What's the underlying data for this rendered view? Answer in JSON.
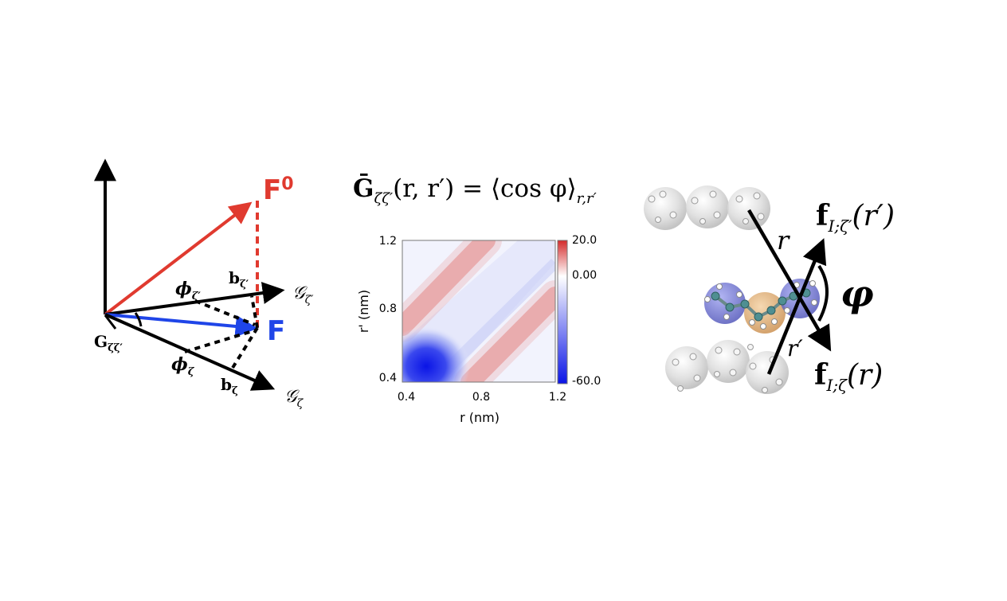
{
  "vector_panel": {
    "label_F0": "F",
    "label_F0_sup": "0",
    "label_F": "F",
    "label_G_prime_axis": "𝒢",
    "label_G_prime_sub": "ζ′",
    "label_G_axis": "𝒢",
    "label_G_sub": "ζ",
    "label_phi_prime": "ϕ",
    "label_phi_prime_sub": "ζ′",
    "label_phi": "ϕ",
    "label_phi_sub": "ζ",
    "label_b_prime": "b",
    "label_b_prime_sub": "ζ′",
    "label_b": "b",
    "label_b_sub": "ζ",
    "label_Gzz": "G",
    "label_Gzz_sub": "ζζ′",
    "colors": {
      "F0": "#e03a2f",
      "F": "#1f45e8",
      "axis": "#000000"
    }
  },
  "equation": {
    "lhs": "Ḡ",
    "lhs_sub": "ζζ′",
    "lhs_args": "(r, r′) = ⟨cos φ⟩",
    "rhs_sub": "r,r′"
  },
  "heatmap": {
    "y_axis_label": "r' (nm)",
    "x_axis_label": "r (nm)",
    "x_ticks": [
      "0.4",
      "0.8",
      "1.2"
    ],
    "y_ticks": [
      "1.2",
      "0.8",
      "0.4"
    ],
    "colorbar_ticks": [
      "20.0",
      "0.00",
      "-60.0"
    ],
    "colors": {
      "positive": "#d42a2a",
      "zero": "#ffffff",
      "negative": "#0a14e6"
    }
  },
  "molecule_panel": {
    "label_f_top": "f",
    "label_f_top_sub": "I;ζ′",
    "label_f_top_arg": "(r′)",
    "label_f_bottom": "f",
    "label_f_bottom_sub": "I;ζ",
    "label_f_bottom_arg": "(r)",
    "label_r": "r",
    "label_r_prime": "r′",
    "label_phi": "φ",
    "colors": {
      "sphere_grey": "#d4d4d4",
      "sphere_blue": "#5a5fc8",
      "sphere_orange": "#d9a160"
    }
  }
}
